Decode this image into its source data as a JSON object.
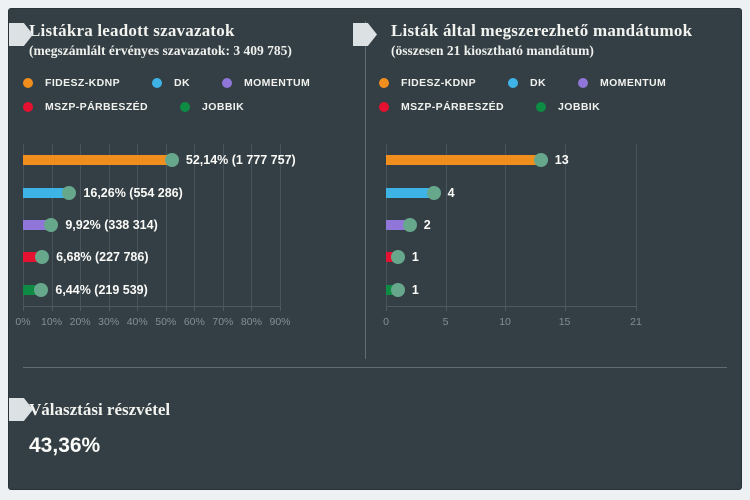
{
  "colors": {
    "page_bg": "#edf1f4",
    "panel_bg": "#343f45",
    "grid": "#48555c",
    "axis_text": "#828f95",
    "text": "#f2f3ef",
    "bar_cap": "#67a78c",
    "divider": "#5d6c73",
    "ribbon": "#dce1e3"
  },
  "icons": {
    "ribbon": "bookmark-ribbon-icon",
    "legend_dot": "legend-dot-icon",
    "bar_cap": "bar-cap-icon"
  },
  "parties": [
    {
      "name": "FIDESZ-KDNP",
      "color": "#f08f1e"
    },
    {
      "name": "DK",
      "color": "#3eb3e6"
    },
    {
      "name": "MOMENTUM",
      "color": "#9076d8"
    },
    {
      "name": "MSZP-PÁRBESZÉD",
      "color": "#e51130"
    },
    {
      "name": "JOBBIK",
      "color": "#0e8c44"
    }
  ],
  "chart_data": [
    {
      "type": "bar",
      "orientation": "horizontal",
      "title": "Listákra leadott szavazatok",
      "subtitle": "(megszámlált érvényes szavazatok: 3 409 785)",
      "legend_position": "top",
      "grid": true,
      "categories": [
        "FIDESZ-KDNP",
        "DK",
        "MOMENTUM",
        "MSZP-PÁRBESZÉD",
        "JOBBIK"
      ],
      "values": [
        52.14,
        16.26,
        9.92,
        6.68,
        6.44
      ],
      "votes": [
        1777757,
        554286,
        338314,
        227786,
        219539
      ],
      "labels": [
        "52,14% (1 777 757)",
        "16,26% (554 286)",
        "9,92% (338 314)",
        "6,68% (227 786)",
        "6,44% (219 539)"
      ],
      "xlabel": "",
      "ylabel": "",
      "axis_max": 90,
      "ticks": [
        0,
        10,
        20,
        30,
        40,
        50,
        60,
        70,
        80,
        90
      ],
      "tick_labels": [
        "0%",
        "10%",
        "20%",
        "30%",
        "40%",
        "50%",
        "60%",
        "70%",
        "80%",
        "90%"
      ]
    },
    {
      "type": "bar",
      "orientation": "horizontal",
      "title": "Listák által megszerezhető mandátumok",
      "subtitle": "(összesen 21 kiosztható mandátum)",
      "legend_position": "top",
      "grid": true,
      "categories": [
        "FIDESZ-KDNP",
        "DK",
        "MOMENTUM",
        "MSZP-PÁRBESZÉD",
        "JOBBIK"
      ],
      "values": [
        13,
        4,
        2,
        1,
        1
      ],
      "labels": [
        "13",
        "4",
        "2",
        "1",
        "1"
      ],
      "xlabel": "",
      "ylabel": "",
      "axis_max": 21,
      "ticks": [
        0,
        5,
        10,
        15,
        21
      ],
      "tick_labels": [
        "0",
        "5",
        "10",
        "15",
        "21"
      ]
    }
  ],
  "turnout": {
    "title": "Választási részvétel",
    "value": "43,36%"
  }
}
